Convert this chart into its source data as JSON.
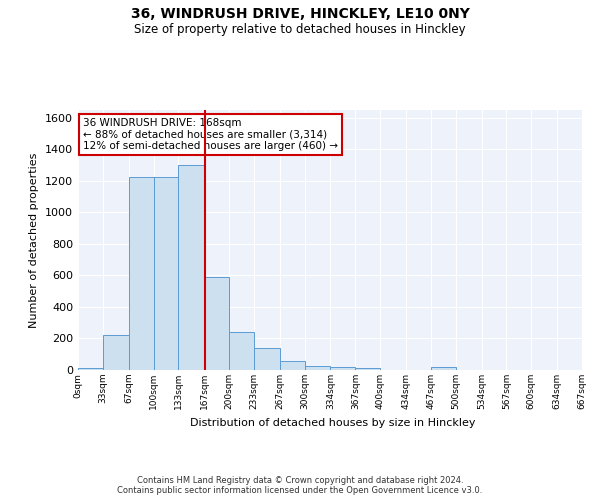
{
  "title1": "36, WINDRUSH DRIVE, HINCKLEY, LE10 0NY",
  "title2": "Size of property relative to detached houses in Hinckley",
  "xlabel": "Distribution of detached houses by size in Hinckley",
  "ylabel": "Number of detached properties",
  "footer1": "Contains HM Land Registry data © Crown copyright and database right 2024.",
  "footer2": "Contains public sector information licensed under the Open Government Licence v3.0.",
  "annotation_line1": "36 WINDRUSH DRIVE: 168sqm",
  "annotation_line2": "← 88% of detached houses are smaller (3,314)",
  "annotation_line3": "12% of semi-detached houses are larger (460) →",
  "bin_edges": [
    0,
    33,
    67,
    100,
    133,
    167,
    200,
    233,
    267,
    300,
    334,
    367,
    400,
    434,
    467,
    500,
    534,
    567,
    600,
    634,
    667
  ],
  "bin_counts": [
    15,
    220,
    1225,
    1225,
    1300,
    590,
    240,
    140,
    55,
    28,
    22,
    12,
    0,
    0,
    18,
    0,
    0,
    0,
    0,
    0
  ],
  "property_size": 168,
  "bar_color": "#cce0f0",
  "bar_edge_color": "#5b9bd5",
  "vline_color": "#cc0000",
  "background_color": "#eef2fb",
  "annotation_box_edge": "#cc0000",
  "ylim": [
    0,
    1650
  ],
  "yticks": [
    0,
    200,
    400,
    600,
    800,
    1000,
    1200,
    1400,
    1600
  ],
  "xtick_labels": [
    "0sqm",
    "33sqm",
    "67sqm",
    "100sqm",
    "133sqm",
    "167sqm",
    "200sqm",
    "233sqm",
    "267sqm",
    "300sqm",
    "334sqm",
    "367sqm",
    "400sqm",
    "434sqm",
    "467sqm",
    "500sqm",
    "534sqm",
    "567sqm",
    "600sqm",
    "634sqm",
    "667sqm"
  ]
}
